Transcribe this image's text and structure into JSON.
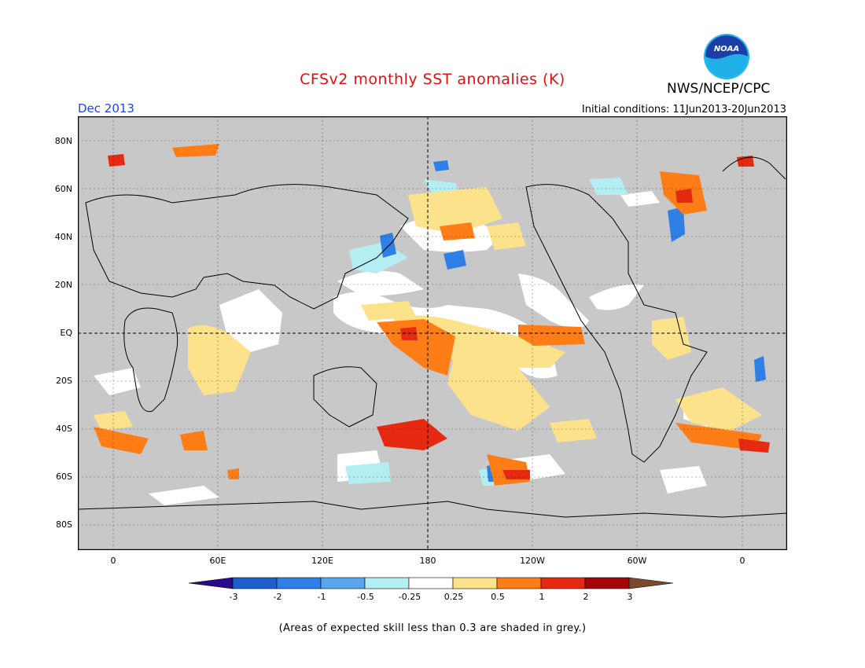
{
  "title": "CFSv2 monthly SST anomalies (K)",
  "period": "Dec 2013",
  "initial_conditions": "Initial conditions: 11Jun2013-20Jun2013",
  "agency": "NWS/NCEP/CPC",
  "logo_text": "NOAA",
  "lat_labels": [
    "80N",
    "60N",
    "40N",
    "20N",
    "EQ",
    "20S",
    "40S",
    "60S",
    "80S"
  ],
  "lon_labels": [
    "0",
    "60E",
    "120E",
    "180",
    "120W",
    "60W",
    "0"
  ],
  "colorbar": {
    "labels": [
      "-3",
      "-2",
      "-1",
      "-0.5",
      "-0.25",
      "0.25",
      "0.5",
      "1",
      "2",
      "3"
    ],
    "colors": [
      "#2a0a8c",
      "#1f5fcc",
      "#2e80e6",
      "#5aa5f0",
      "#b4eef2",
      "#ffffff",
      "#fde28c",
      "#fe7d17",
      "#e62a12",
      "#a3050a",
      "#7b4a2e"
    ]
  },
  "footnote": "(Areas of expected skill less than 0.3 are shaded in grey.)"
}
